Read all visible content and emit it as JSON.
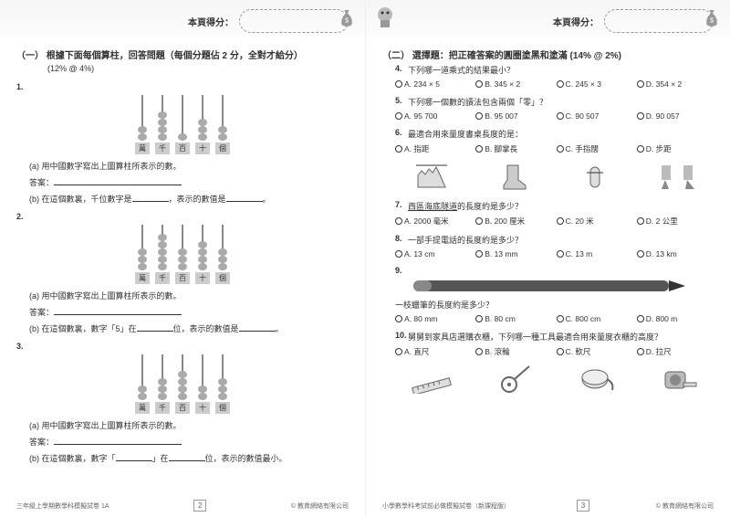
{
  "header": {
    "scoreLabel": "本頁得分："
  },
  "left": {
    "sectionTitle": "（一） 根據下面每個算柱，回答問題（每個分題佔 2 分，全對才給分）",
    "sectionSub": "(12% @ 4%)",
    "rodLabels": [
      "萬",
      "千",
      "百",
      "十",
      "個"
    ],
    "questions": [
      {
        "num": "1.",
        "beads": [
          2,
          4,
          1,
          3,
          2
        ],
        "a": "用中國數字寫出上圖算柱所表示的數。",
        "ans": "答案：",
        "b_pre": "在這個數裏，千位數字是",
        "b_post": "，表示的數值是"
      },
      {
        "num": "2.",
        "beads": [
          3,
          5,
          3,
          4,
          3
        ],
        "a": "用中國數字寫出上圖算柱所表示的數。",
        "ans": "答案：",
        "b_pre": "在這個數裏，數字「5」在",
        "b_post": "位，表示的數值是"
      },
      {
        "num": "3.",
        "beads": [
          2,
          3,
          4,
          2,
          3
        ],
        "a": "用中國數字寫出上圖算柱所表示的數。",
        "ans": "答案：",
        "b_pre": "在這個數裏，數字「",
        "b_mid": "」在",
        "b_post": "位，表示的數值最小。"
      }
    ],
    "footer": {
      "left": "三年級上學期數學科模擬試卷 1A",
      "page": "2",
      "right": "© 教育網絡有限公司"
    }
  },
  "right": {
    "sectionTitle": "（二） 選擇題：把正確答案的圓圈塗黑和塗滿  (14% @ 2%)",
    "q4": {
      "num": "4.",
      "text": "下列哪一道乘式的結果最小？",
      "opts": [
        "A. 234 × 5",
        "B. 345 × 2",
        "C. 245 × 3",
        "D. 354 × 2"
      ]
    },
    "q5": {
      "num": "5.",
      "text": "下列哪一個數的讀法包含兩個「零」？",
      "opts": [
        "A. 95 700",
        "B. 95 007",
        "C. 90 507",
        "D. 90 057"
      ]
    },
    "q6": {
      "num": "6.",
      "text": "最適合用來量度書桌長度的是：",
      "opts": [
        "A. 指距",
        "B. 腳掌長",
        "C. 手指闊",
        "D. 步距"
      ]
    },
    "q7": {
      "num": "7.",
      "text_pre": "西區海底隧道",
      "text_post": "的長度約是多少？",
      "opts": [
        "A. 2000 毫米",
        "B. 200 厘米",
        "C. 20 米",
        "D. 2 公里"
      ]
    },
    "q8": {
      "num": "8.",
      "text": "一部手提電話的長度約是多少？",
      "opts": [
        "A. 13 cm",
        "B. 13 mm",
        "C. 13 m",
        "D. 13 km"
      ]
    },
    "q9": {
      "num": "9.",
      "text": "一枝蠟筆的長度約是多少？",
      "opts": [
        "A. 80 mm",
        "B. 80 cm",
        "C. 800 cm",
        "D. 800 m"
      ]
    },
    "q10": {
      "num": "10.",
      "text": "舅舅到家具店選購衣櫃，下列哪一種工具最適合用來量度衣櫃的高度？",
      "opts": [
        "A. 直尺",
        "B. 滾輪",
        "C. 軟尺",
        "D. 拉尺"
      ]
    },
    "footer": {
      "left": "小學數學科考試前必做模擬試卷（新課程版）",
      "page": "3",
      "right": "© 教育網絡有限公司"
    }
  }
}
